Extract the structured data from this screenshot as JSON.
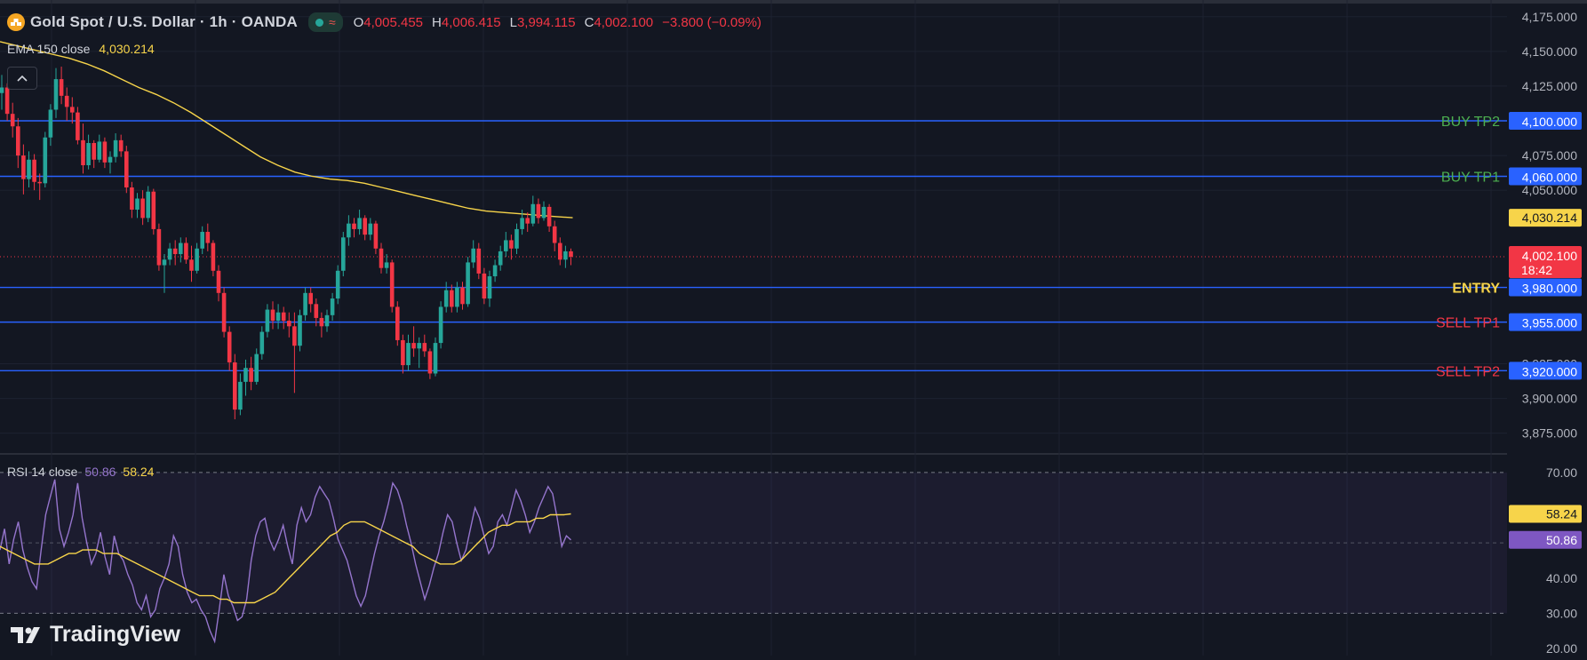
{
  "header": {
    "symbol_title": "Gold Spot / U.S. Dollar · 1h · OANDA",
    "ohlc": [
      {
        "key": "O",
        "value": "4,005.455"
      },
      {
        "key": "H",
        "value": "4,006.415"
      },
      {
        "key": "L",
        "value": "3,994.115"
      },
      {
        "key": "C",
        "value": "4,002.100"
      }
    ],
    "change": "−3.800 (−0.09%)"
  },
  "ema_legend": {
    "label": "EMA 150 close",
    "value": "4,030.214"
  },
  "rsi_legend": {
    "label": "RSI 14 close",
    "rsi_value": "50.86",
    "ma_value": "58.24"
  },
  "logo": {
    "text": "TradingView"
  },
  "colors": {
    "background": "#131722",
    "bull": "#26a69a",
    "bear": "#f23645",
    "ema": "#f7d44a",
    "rsi": "#9575cd",
    "level_line": "#2962ff",
    "axis_text": "#b2b5be",
    "buy_text": "#4caf50",
    "sell_text": "#f23645",
    "entry_text": "#f7d44a"
  },
  "chart_data": [
    {
      "type": "candlestick",
      "price_axis": {
        "range": [
          3862,
          4187
        ],
        "ticks": [
          "4,175.000",
          "4,150.000",
          "4,125.000",
          "4,075.000",
          "4,050.000",
          "3,925.000",
          "3,900.000",
          "3,875.000"
        ],
        "tick_values": [
          4175,
          4150,
          4125,
          4075,
          4050,
          3925,
          3900,
          3875
        ]
      },
      "levels": [
        {
          "label": "BUY TP2",
          "value": 4100,
          "price_label": "4,100.000",
          "kind": "buy"
        },
        {
          "label": "BUY TP1",
          "value": 4060,
          "price_label": "4,060.000",
          "kind": "buy"
        },
        {
          "label": "ENTRY",
          "value": 3980,
          "price_label": "3,980.000",
          "kind": "entry"
        },
        {
          "label": "SELL TP1",
          "value": 3955,
          "price_label": "3,955.000",
          "kind": "sell"
        },
        {
          "label": "SELL TP2",
          "value": 3920,
          "price_label": "3,920.000",
          "kind": "sell"
        }
      ],
      "current_price": {
        "value": 4002.1,
        "label": "4,002.100",
        "countdown": "18:42"
      },
      "ema_marker": {
        "value": 4030.214,
        "label": "4,030.214"
      },
      "ema_150": [
        4157,
        4154,
        4151,
        4148,
        4145,
        4141,
        4136,
        4130,
        4124,
        4119,
        4113,
        4106,
        4098,
        4090,
        4082,
        4074,
        4068,
        4063,
        4060,
        4058,
        4057,
        4055,
        4052,
        4049,
        4046,
        4043,
        4040,
        4037,
        4035,
        4034,
        4033,
        4032,
        4031,
        4030.214
      ],
      "candles": [
        {
          "o": 4120,
          "h": 4133,
          "l": 4108,
          "c": 4124
        },
        {
          "o": 4124,
          "h": 4127,
          "l": 4100,
          "c": 4105
        },
        {
          "o": 4105,
          "h": 4113,
          "l": 4088,
          "c": 4096
        },
        {
          "o": 4096,
          "h": 4102,
          "l": 4066,
          "c": 4075
        },
        {
          "o": 4075,
          "h": 4083,
          "l": 4047,
          "c": 4058
        },
        {
          "o": 4058,
          "h": 4078,
          "l": 4052,
          "c": 4072
        },
        {
          "o": 4072,
          "h": 4076,
          "l": 4050,
          "c": 4056
        },
        {
          "o": 4056,
          "h": 4062,
          "l": 4043,
          "c": 4055
        },
        {
          "o": 4055,
          "h": 4092,
          "l": 4052,
          "c": 4088
        },
        {
          "o": 4088,
          "h": 4112,
          "l": 4082,
          "c": 4108
        },
        {
          "o": 4108,
          "h": 4138,
          "l": 4102,
          "c": 4130
        },
        {
          "o": 4130,
          "h": 4139,
          "l": 4112,
          "c": 4118
        },
        {
          "o": 4118,
          "h": 4124,
          "l": 4100,
          "c": 4110
        },
        {
          "o": 4110,
          "h": 4117,
          "l": 4098,
          "c": 4106
        },
        {
          "o": 4106,
          "h": 4110,
          "l": 4083,
          "c": 4086
        },
        {
          "o": 4086,
          "h": 4098,
          "l": 4062,
          "c": 4068
        },
        {
          "o": 4068,
          "h": 4090,
          "l": 4065,
          "c": 4084
        },
        {
          "o": 4084,
          "h": 4086,
          "l": 4066,
          "c": 4072
        },
        {
          "o": 4072,
          "h": 4090,
          "l": 4070,
          "c": 4085
        },
        {
          "o": 4085,
          "h": 4088,
          "l": 4066,
          "c": 4070
        },
        {
          "o": 4070,
          "h": 4078,
          "l": 4062,
          "c": 4074
        },
        {
          "o": 4074,
          "h": 4091,
          "l": 4070,
          "c": 4086
        },
        {
          "o": 4086,
          "h": 4090,
          "l": 4074,
          "c": 4078
        },
        {
          "o": 4078,
          "h": 4082,
          "l": 4048,
          "c": 4052
        },
        {
          "o": 4052,
          "h": 4056,
          "l": 4030,
          "c": 4036
        },
        {
          "o": 4036,
          "h": 4048,
          "l": 4030,
          "c": 4044
        },
        {
          "o": 4044,
          "h": 4050,
          "l": 4025,
          "c": 4030
        },
        {
          "o": 4030,
          "h": 4053,
          "l": 4027,
          "c": 4049
        },
        {
          "o": 4049,
          "h": 4051,
          "l": 4018,
          "c": 4022
        },
        {
          "o": 4022,
          "h": 4026,
          "l": 3992,
          "c": 3996
        },
        {
          "o": 3996,
          "h": 4004,
          "l": 3976,
          "c": 4000
        },
        {
          "o": 4000,
          "h": 4012,
          "l": 3996,
          "c": 4008
        },
        {
          "o": 4008,
          "h": 4014,
          "l": 3996,
          "c": 4004
        },
        {
          "o": 4004,
          "h": 4016,
          "l": 3998,
          "c": 4012
        },
        {
          "o": 4012,
          "h": 4016,
          "l": 3997,
          "c": 4000
        },
        {
          "o": 4000,
          "h": 4010,
          "l": 3984,
          "c": 3992
        },
        {
          "o": 3992,
          "h": 4012,
          "l": 3990,
          "c": 4008
        },
        {
          "o": 4008,
          "h": 4024,
          "l": 4004,
          "c": 4020
        },
        {
          "o": 4020,
          "h": 4026,
          "l": 4006,
          "c": 4012
        },
        {
          "o": 4012,
          "h": 4014,
          "l": 3988,
          "c": 3992
        },
        {
          "o": 3992,
          "h": 3996,
          "l": 3970,
          "c": 3976
        },
        {
          "o": 3976,
          "h": 3980,
          "l": 3944,
          "c": 3948
        },
        {
          "o": 3948,
          "h": 3952,
          "l": 3920,
          "c": 3926
        },
        {
          "o": 3926,
          "h": 3932,
          "l": 3885,
          "c": 3892
        },
        {
          "o": 3892,
          "h": 3918,
          "l": 3888,
          "c": 3912
        },
        {
          "o": 3912,
          "h": 3928,
          "l": 3902,
          "c": 3922
        },
        {
          "o": 3922,
          "h": 3930,
          "l": 3906,
          "c": 3912
        },
        {
          "o": 3912,
          "h": 3936,
          "l": 3910,
          "c": 3932
        },
        {
          "o": 3932,
          "h": 3952,
          "l": 3928,
          "c": 3948
        },
        {
          "o": 3948,
          "h": 3968,
          "l": 3944,
          "c": 3964
        },
        {
          "o": 3964,
          "h": 3970,
          "l": 3950,
          "c": 3956
        },
        {
          "o": 3956,
          "h": 3968,
          "l": 3950,
          "c": 3962
        },
        {
          "o": 3962,
          "h": 3966,
          "l": 3950,
          "c": 3956
        },
        {
          "o": 3956,
          "h": 3962,
          "l": 3944,
          "c": 3952
        },
        {
          "o": 3952,
          "h": 3962,
          "l": 3904,
          "c": 3938
        },
        {
          "o": 3938,
          "h": 3964,
          "l": 3934,
          "c": 3960
        },
        {
          "o": 3960,
          "h": 3980,
          "l": 3956,
          "c": 3976
        },
        {
          "o": 3976,
          "h": 3980,
          "l": 3962,
          "c": 3968
        },
        {
          "o": 3968,
          "h": 3972,
          "l": 3952,
          "c": 3958
        },
        {
          "o": 3958,
          "h": 3962,
          "l": 3944,
          "c": 3952
        },
        {
          "o": 3952,
          "h": 3964,
          "l": 3948,
          "c": 3960
        },
        {
          "o": 3960,
          "h": 3976,
          "l": 3956,
          "c": 3972
        },
        {
          "o": 3972,
          "h": 3996,
          "l": 3968,
          "c": 3992
        },
        {
          "o": 3992,
          "h": 4020,
          "l": 3988,
          "c": 4016
        },
        {
          "o": 4016,
          "h": 4032,
          "l": 4010,
          "c": 4026
        },
        {
          "o": 4026,
          "h": 4030,
          "l": 4016,
          "c": 4022
        },
        {
          "o": 4022,
          "h": 4036,
          "l": 4018,
          "c": 4030
        },
        {
          "o": 4030,
          "h": 4032,
          "l": 4014,
          "c": 4018
        },
        {
          "o": 4018,
          "h": 4030,
          "l": 4014,
          "c": 4026
        },
        {
          "o": 4026,
          "h": 4028,
          "l": 4004,
          "c": 4008
        },
        {
          "o": 4008,
          "h": 4012,
          "l": 3990,
          "c": 3994
        },
        {
          "o": 3994,
          "h": 4004,
          "l": 3990,
          "c": 3998
        },
        {
          "o": 3998,
          "h": 4000,
          "l": 3962,
          "c": 3966
        },
        {
          "o": 3966,
          "h": 3970,
          "l": 3938,
          "c": 3942
        },
        {
          "o": 3942,
          "h": 3946,
          "l": 3918,
          "c": 3924
        },
        {
          "o": 3924,
          "h": 3946,
          "l": 3920,
          "c": 3940
        },
        {
          "o": 3940,
          "h": 3952,
          "l": 3930,
          "c": 3936
        },
        {
          "o": 3936,
          "h": 3944,
          "l": 3922,
          "c": 3940
        },
        {
          "o": 3940,
          "h": 3946,
          "l": 3930,
          "c": 3934
        },
        {
          "o": 3934,
          "h": 3936,
          "l": 3914,
          "c": 3918
        },
        {
          "o": 3918,
          "h": 3944,
          "l": 3916,
          "c": 3940
        },
        {
          "o": 3940,
          "h": 3970,
          "l": 3936,
          "c": 3966
        },
        {
          "o": 3966,
          "h": 3984,
          "l": 3962,
          "c": 3978
        },
        {
          "o": 3978,
          "h": 3982,
          "l": 3962,
          "c": 3966
        },
        {
          "o": 3966,
          "h": 3984,
          "l": 3962,
          "c": 3980
        },
        {
          "o": 3980,
          "h": 3984,
          "l": 3964,
          "c": 3968
        },
        {
          "o": 3968,
          "h": 4002,
          "l": 3966,
          "c": 3998
        },
        {
          "o": 3998,
          "h": 4014,
          "l": 3994,
          "c": 4008
        },
        {
          "o": 4008,
          "h": 4012,
          "l": 3986,
          "c": 3990
        },
        {
          "o": 3990,
          "h": 3994,
          "l": 3968,
          "c": 3972
        },
        {
          "o": 3972,
          "h": 3992,
          "l": 3966,
          "c": 3988
        },
        {
          "o": 3988,
          "h": 4000,
          "l": 3984,
          "c": 3996
        },
        {
          "o": 3996,
          "h": 4010,
          "l": 3992,
          "c": 4006
        },
        {
          "o": 4006,
          "h": 4020,
          "l": 4002,
          "c": 4014
        },
        {
          "o": 4014,
          "h": 4018,
          "l": 4000,
          "c": 4008
        },
        {
          "o": 4008,
          "h": 4026,
          "l": 4004,
          "c": 4022
        },
        {
          "o": 4022,
          "h": 4036,
          "l": 4018,
          "c": 4030
        },
        {
          "o": 4030,
          "h": 4034,
          "l": 4020,
          "c": 4026
        },
        {
          "o": 4026,
          "h": 4046,
          "l": 4024,
          "c": 4040
        },
        {
          "o": 4040,
          "h": 4044,
          "l": 4026,
          "c": 4030
        },
        {
          "o": 4030,
          "h": 4042,
          "l": 4028,
          "c": 4038
        },
        {
          "o": 4038,
          "h": 4040,
          "l": 4020,
          "c": 4024
        },
        {
          "o": 4024,
          "h": 4028,
          "l": 4006,
          "c": 4012
        },
        {
          "o": 4012,
          "h": 4016,
          "l": 3996,
          "c": 4000
        },
        {
          "o": 4000,
          "h": 4010,
          "l": 3994,
          "c": 4006
        },
        {
          "o": 4006,
          "h": 4008,
          "l": 3996,
          "c": 4002.1
        }
      ]
    },
    {
      "type": "line",
      "name": "RSI 14 close",
      "y_axis": {
        "range": [
          18,
          73
        ],
        "ticks": [
          "70.00",
          "40.00",
          "30.00",
          "20.00"
        ],
        "tick_values": [
          70,
          40,
          30,
          20
        ]
      },
      "bands": [
        30,
        50,
        70
      ],
      "rsi": [
        48,
        54,
        44,
        51,
        56,
        48,
        43,
        39,
        37,
        48,
        58,
        63,
        68,
        54,
        49,
        53,
        58,
        67,
        57,
        50,
        44,
        47,
        53,
        46,
        41,
        52,
        47,
        45,
        41,
        38,
        33,
        31,
        35,
        29,
        31,
        37,
        40,
        44,
        52,
        49,
        41,
        36,
        33,
        34,
        31,
        29,
        25,
        22,
        31,
        41,
        35,
        32,
        28,
        29,
        34,
        45,
        52,
        56,
        57,
        51,
        48,
        51,
        55,
        49,
        44,
        55,
        60,
        56,
        58,
        63,
        66,
        64,
        62,
        57,
        51,
        48,
        45,
        40,
        35,
        32,
        35,
        41,
        47,
        52,
        56,
        61,
        67,
        65,
        61,
        55,
        50,
        44,
        39,
        34,
        38,
        43,
        47,
        53,
        58,
        56,
        50,
        45,
        48,
        54,
        60,
        57,
        52,
        47,
        49,
        56,
        58,
        55,
        60,
        65,
        62,
        58,
        53,
        56,
        60,
        63,
        66,
        64,
        57,
        49,
        52,
        50.86
      ],
      "ma": [
        49,
        48,
        47,
        46,
        45,
        44,
        44,
        44,
        45,
        46,
        47,
        47,
        48,
        48,
        48,
        47,
        47,
        47,
        46,
        45,
        44,
        43,
        42,
        41,
        40,
        39,
        38,
        37,
        36,
        35,
        35,
        35,
        34,
        34,
        33,
        33,
        33,
        33,
        34,
        35,
        36,
        38,
        40,
        42,
        44,
        46,
        48,
        50,
        52,
        53,
        55,
        56,
        56,
        56,
        55,
        54,
        53,
        52,
        51,
        50,
        49,
        47,
        46,
        45,
        44,
        44,
        44,
        45,
        47,
        49,
        51,
        53,
        54,
        55,
        55,
        56,
        56,
        56,
        57,
        57,
        58,
        58,
        58,
        58.24
      ],
      "current": {
        "rsi": "50.86",
        "ma": "58.24"
      }
    }
  ]
}
